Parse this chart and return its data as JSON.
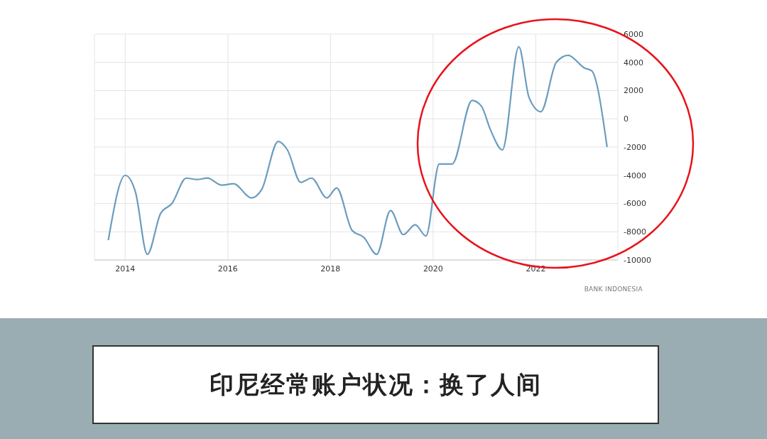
{
  "chart_data": {
    "type": "line",
    "title": "印尼经常账户状况：换了人间",
    "annotations": [
      "BANK INDONESIA"
    ],
    "x": [
      2013.67,
      2014.0,
      2014.2,
      2014.43,
      2014.69,
      2014.91,
      2015.19,
      2015.4,
      2015.6,
      2015.88,
      2016.11,
      2016.46,
      2016.66,
      2016.98,
      2017.16,
      2017.42,
      2017.63,
      2017.93,
      2018.12,
      2018.42,
      2018.65,
      2018.9,
      2019.17,
      2019.42,
      2019.65,
      2019.86,
      2020.12,
      2020.37,
      2020.76,
      2020.94,
      2021.12,
      2021.35,
      2021.67,
      2021.87,
      2022.1,
      2022.4,
      2022.63,
      2022.95,
      2023.09,
      2023.39
    ],
    "values": [
      -8600,
      -4000,
      -5200,
      -9600,
      -6700,
      -6000,
      -4200,
      -4300,
      -4200,
      -4700,
      -4600,
      -5600,
      -5000,
      -1600,
      -2200,
      -4500,
      -4200,
      -5600,
      -4900,
      -7900,
      -8400,
      -9600,
      -6500,
      -8200,
      -7500,
      -8300,
      -3200,
      -3200,
      1300,
      900,
      -800,
      -2200,
      5100,
      1500,
      500,
      4000,
      4500,
      3600,
      3400,
      -2000
    ],
    "color": "#6b9dbf",
    "xlim": [
      2013.4,
      2023.6
    ],
    "xticks": [
      2014,
      2016,
      2018,
      2020,
      2022
    ],
    "ylim": [
      -10000,
      6000
    ],
    "yticks": [
      -10000,
      -8000,
      -6000,
      -4000,
      -2000,
      0,
      2000,
      4000,
      6000
    ],
    "grid": true,
    "marker": "none"
  }
}
